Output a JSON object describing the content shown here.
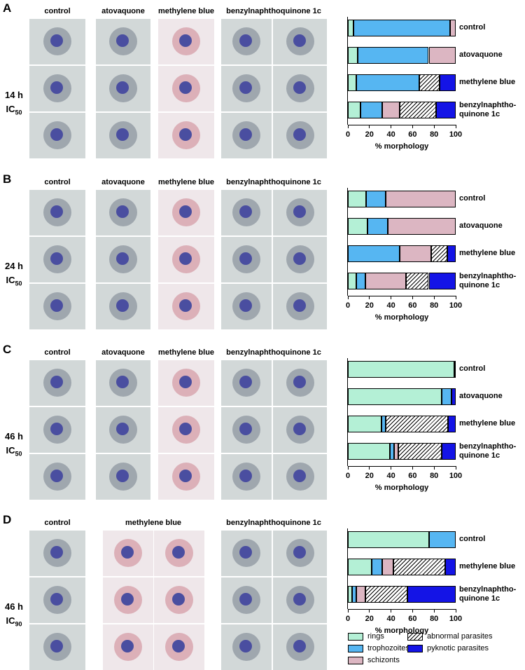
{
  "panels": [
    {
      "letter": "A",
      "columns": [
        "control",
        "atovaquone",
        "methylene blue",
        "benzylnaphthoquinone 1c"
      ],
      "time": "14 h",
      "ic": "IC",
      "ic_sub": "50"
    },
    {
      "letter": "B",
      "columns": [
        "control",
        "atovaquone",
        "methylene blue",
        "benzylnaphthoquinone 1c"
      ],
      "time": "24 h",
      "ic": "IC",
      "ic_sub": "50"
    },
    {
      "letter": "C",
      "columns": [
        "control",
        "atovaquone",
        "methylene blue",
        "benzylnaphthoquinone 1c"
      ],
      "time": "46 h",
      "ic": "IC",
      "ic_sub": "50"
    },
    {
      "letter": "D",
      "columns": [
        "control",
        "methylene blue",
        "benzylnaphthoquinone 1c"
      ],
      "time": "46 h",
      "ic": "IC",
      "ic_sub": "90"
    }
  ],
  "chart_data": [
    {
      "type": "bar",
      "orientation": "horizontal",
      "stacked": true,
      "categories": [
        "control",
        "atovaquone",
        "methylene blue",
        "benzylnaphtho-\nquinone 1c"
      ],
      "series": [
        {
          "values": [
            5,
            9,
            8,
            12
          ]
        },
        {
          "values": [
            90,
            66,
            58,
            20
          ]
        },
        {
          "values": [
            5,
            25,
            0,
            16
          ]
        },
        {
          "values": [
            0,
            0,
            19,
            34
          ]
        },
        {
          "values": [
            0,
            0,
            15,
            18
          ]
        }
      ],
      "xlim": [
        0,
        100
      ],
      "xticks": [
        0,
        20,
        40,
        60,
        80,
        100
      ],
      "xlabel": "% morphology"
    },
    {
      "type": "bar",
      "orientation": "horizontal",
      "stacked": true,
      "categories": [
        "control",
        "atovaquone",
        "methylene blue",
        "benzylnaphtho-\nquinone 1c"
      ],
      "series": [
        {
          "values": [
            17,
            18,
            0,
            8
          ]
        },
        {
          "values": [
            18,
            19,
            48,
            8
          ]
        },
        {
          "values": [
            65,
            63,
            29,
            38
          ]
        },
        {
          "values": [
            0,
            0,
            15,
            21
          ]
        },
        {
          "values": [
            0,
            0,
            8,
            25
          ]
        }
      ],
      "xlim": [
        0,
        100
      ],
      "xticks": [
        0,
        20,
        40,
        60,
        80,
        100
      ],
      "xlabel": "% morphology"
    },
    {
      "type": "bar",
      "orientation": "horizontal",
      "stacked": true,
      "categories": [
        "control",
        "atovaquone",
        "methylene blue",
        "benzylnaphtho-\nquinone 1c"
      ],
      "series": [
        {
          "values": [
            99,
            87,
            31,
            39
          ]
        },
        {
          "values": [
            1,
            9,
            4,
            4
          ]
        },
        {
          "values": [
            0,
            0,
            0,
            4
          ]
        },
        {
          "values": [
            0,
            0,
            58,
            40
          ]
        },
        {
          "values": [
            0,
            4,
            7,
            13
          ]
        }
      ],
      "xlim": [
        0,
        100
      ],
      "xticks": [
        0,
        20,
        40,
        60,
        80,
        100
      ],
      "xlabel": "% morphology"
    },
    {
      "type": "bar",
      "orientation": "horizontal",
      "stacked": true,
      "categories": [
        "control",
        "methylene blue",
        "benzylnaphtho-\nquinone 1c"
      ],
      "series": [
        {
          "values": [
            75,
            22,
            4
          ]
        },
        {
          "values": [
            25,
            10,
            4
          ]
        },
        {
          "values": [
            0,
            10,
            8
          ]
        },
        {
          "values": [
            0,
            48,
            39
          ]
        },
        {
          "values": [
            0,
            10,
            45
          ]
        }
      ],
      "xlim": [
        0,
        100
      ],
      "xticks": [
        0,
        20,
        40,
        60,
        80,
        100
      ],
      "xlabel": "% morphology"
    }
  ],
  "legend": {
    "position": "bottom-right",
    "items": [
      {
        "name": "rings",
        "color": "#b4f0d6",
        "hatch": false
      },
      {
        "name": "trophozoites",
        "color": "#56b6f2",
        "hatch": false
      },
      {
        "name": "schizonts",
        "color": "#dcb6c2",
        "hatch": false
      },
      {
        "name": "abnormal parasites",
        "color": "#ffffff",
        "hatch": true
      },
      {
        "name": "pyknotic parasites",
        "color": "#1414e6",
        "hatch": false
      }
    ]
  }
}
